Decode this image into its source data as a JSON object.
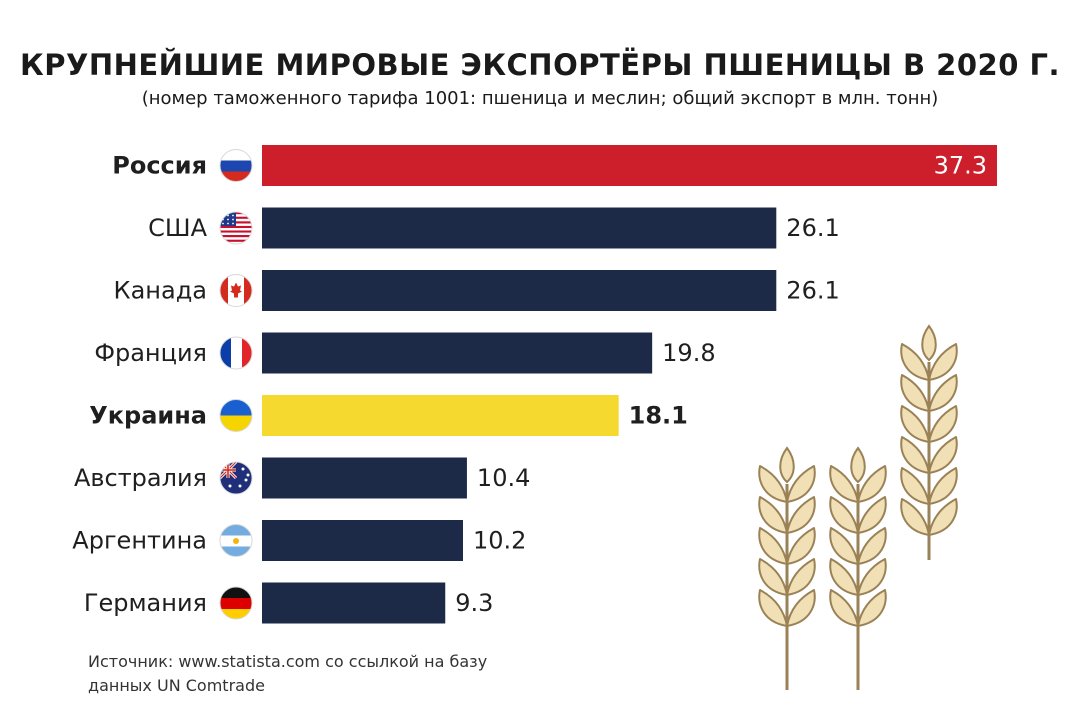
{
  "title": "КРУПНЕЙШИЕ МИРОВЫЕ ЭКСПОРТЁРЫ ПШЕНИЦЫ В 2020 Г.",
  "subtitle": "(номер таможенного тарифа 1001: пшеница и меслин; общий экспорт в млн. тонн)",
  "source": "Источник: www.statista.com со ссылкой на базу данных UN Comtrade",
  "colors": {
    "default": "#1c2a47",
    "russia": "#cc1f2b",
    "ukraine": "#f5d92e",
    "wheat_fill": "#f1dfb6",
    "wheat_stroke": "#9a8256"
  },
  "chart_data": {
    "type": "bar",
    "orientation": "horizontal",
    "title": "КРУПНЕЙШИЕ МИРОВЫЕ ЭКСПОРТЁРЫ ПШЕНИЦЫ В 2020 Г.",
    "xlabel": "",
    "ylabel": "",
    "unit": "млн. тонн",
    "xlim": [
      0,
      37.3
    ],
    "grid": false,
    "categories": [
      "Россия",
      "США",
      "Канада",
      "Франция",
      "Украина",
      "Австралия",
      "Аргентина",
      "Германия"
    ],
    "values": [
      37.3,
      26.1,
      26.1,
      19.8,
      18.1,
      10.4,
      10.2,
      9.3
    ],
    "value_labels": [
      "37.3",
      "26.1",
      "26.1",
      "19.8",
      "18.1",
      "10.4",
      "10.2",
      "9.3"
    ],
    "highlight": {
      "Россия": "russia",
      "Украина": "ukraine"
    },
    "bold": [
      "Россия",
      "Украина"
    ],
    "flags": [
      "russia-flag-icon",
      "usa-flag-icon",
      "canada-flag-icon",
      "france-flag-icon",
      "ukraine-flag-icon",
      "australia-flag-icon",
      "argentina-flag-icon",
      "germany-flag-icon"
    ]
  }
}
